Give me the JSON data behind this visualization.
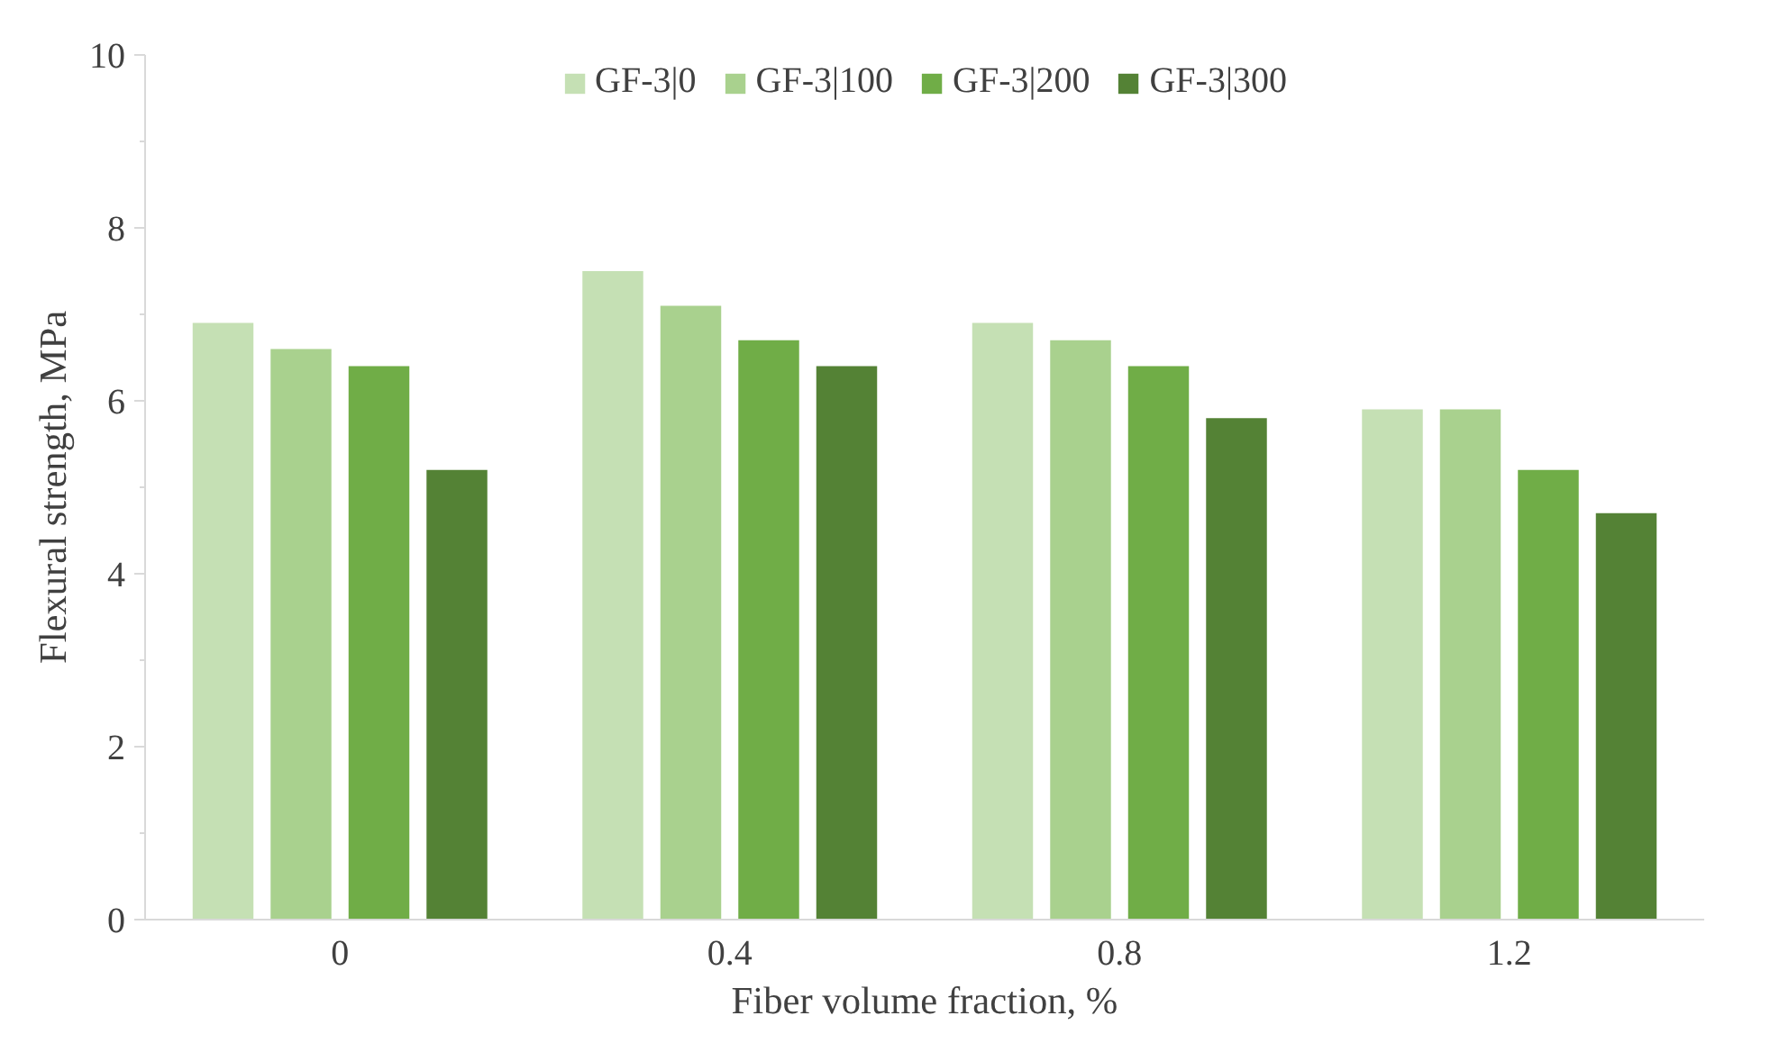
{
  "chart_data": {
    "type": "bar",
    "xlabel": "Fiber volume fraction, %",
    "ylabel": "Flexural strength, MPa",
    "categories": [
      "0",
      "0.4",
      "0.8",
      "1.2"
    ],
    "series": [
      {
        "name": "GF-3|0",
        "color": "#c5e0b4",
        "values": [
          6.9,
          7.5,
          6.9,
          5.9
        ]
      },
      {
        "name": "GF-3|100",
        "color": "#a9d18e",
        "values": [
          6.6,
          7.1,
          6.7,
          5.9
        ]
      },
      {
        "name": "GF-3|200",
        "color": "#70ad47",
        "values": [
          6.4,
          6.7,
          6.4,
          5.2
        ]
      },
      {
        "name": "GF-3|300",
        "color": "#548235",
        "values": [
          5.2,
          6.4,
          5.8,
          4.7
        ]
      }
    ],
    "ylim": [
      0,
      10
    ],
    "yticks": [
      0,
      2,
      4,
      6,
      8,
      10
    ],
    "grid": false,
    "legend": "top"
  }
}
